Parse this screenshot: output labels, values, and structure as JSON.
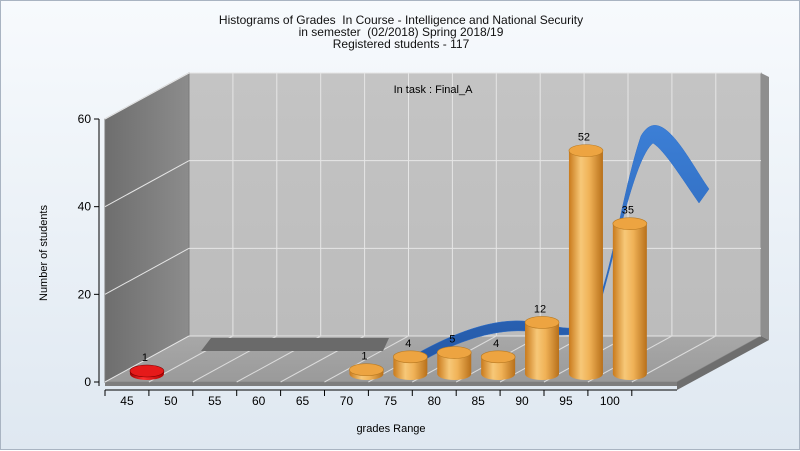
{
  "title_lines": [
    "Histograms of Grades  In Course - Intelligence and National Security",
    "in semester  (02/2018) Spring 2018/19",
    "Registered students - 117"
  ],
  "task_label": "In task : Final_A",
  "chart_data": {
    "type": "bar",
    "title": "Histograms of Grades  In Course - Intelligence and National Security",
    "subtitle": "in semester  (02/2018) Spring 2018/19 / Registered students - 117",
    "annotation": "In task : Final_A",
    "xlabel": "grades Range",
    "ylabel": "Number of students",
    "x_ticks": [
      "45",
      "50",
      "55",
      "60",
      "65",
      "70",
      "75",
      "80",
      "85",
      "90",
      "95",
      "100"
    ],
    "y_ticks": [
      "0",
      "20",
      "40",
      "60"
    ],
    "ylim": [
      0,
      60
    ],
    "grid": true,
    "series": [
      {
        "role": "highlight",
        "color": "#e01010",
        "categories": [
          "45"
        ],
        "values": [
          1
        ],
        "labels": [
          "1"
        ]
      },
      {
        "role": "bars",
        "color": "#e8a23c",
        "categories": [
          "70",
          "75",
          "80",
          "85",
          "90",
          "95",
          "100"
        ],
        "values": [
          1,
          4,
          5,
          4,
          12,
          52,
          35
        ],
        "labels": [
          "1",
          "4",
          "5",
          "4",
          "12",
          "52",
          "35"
        ]
      },
      {
        "role": "curve",
        "color": "#2f6fc9",
        "type": "ribbon"
      }
    ]
  }
}
